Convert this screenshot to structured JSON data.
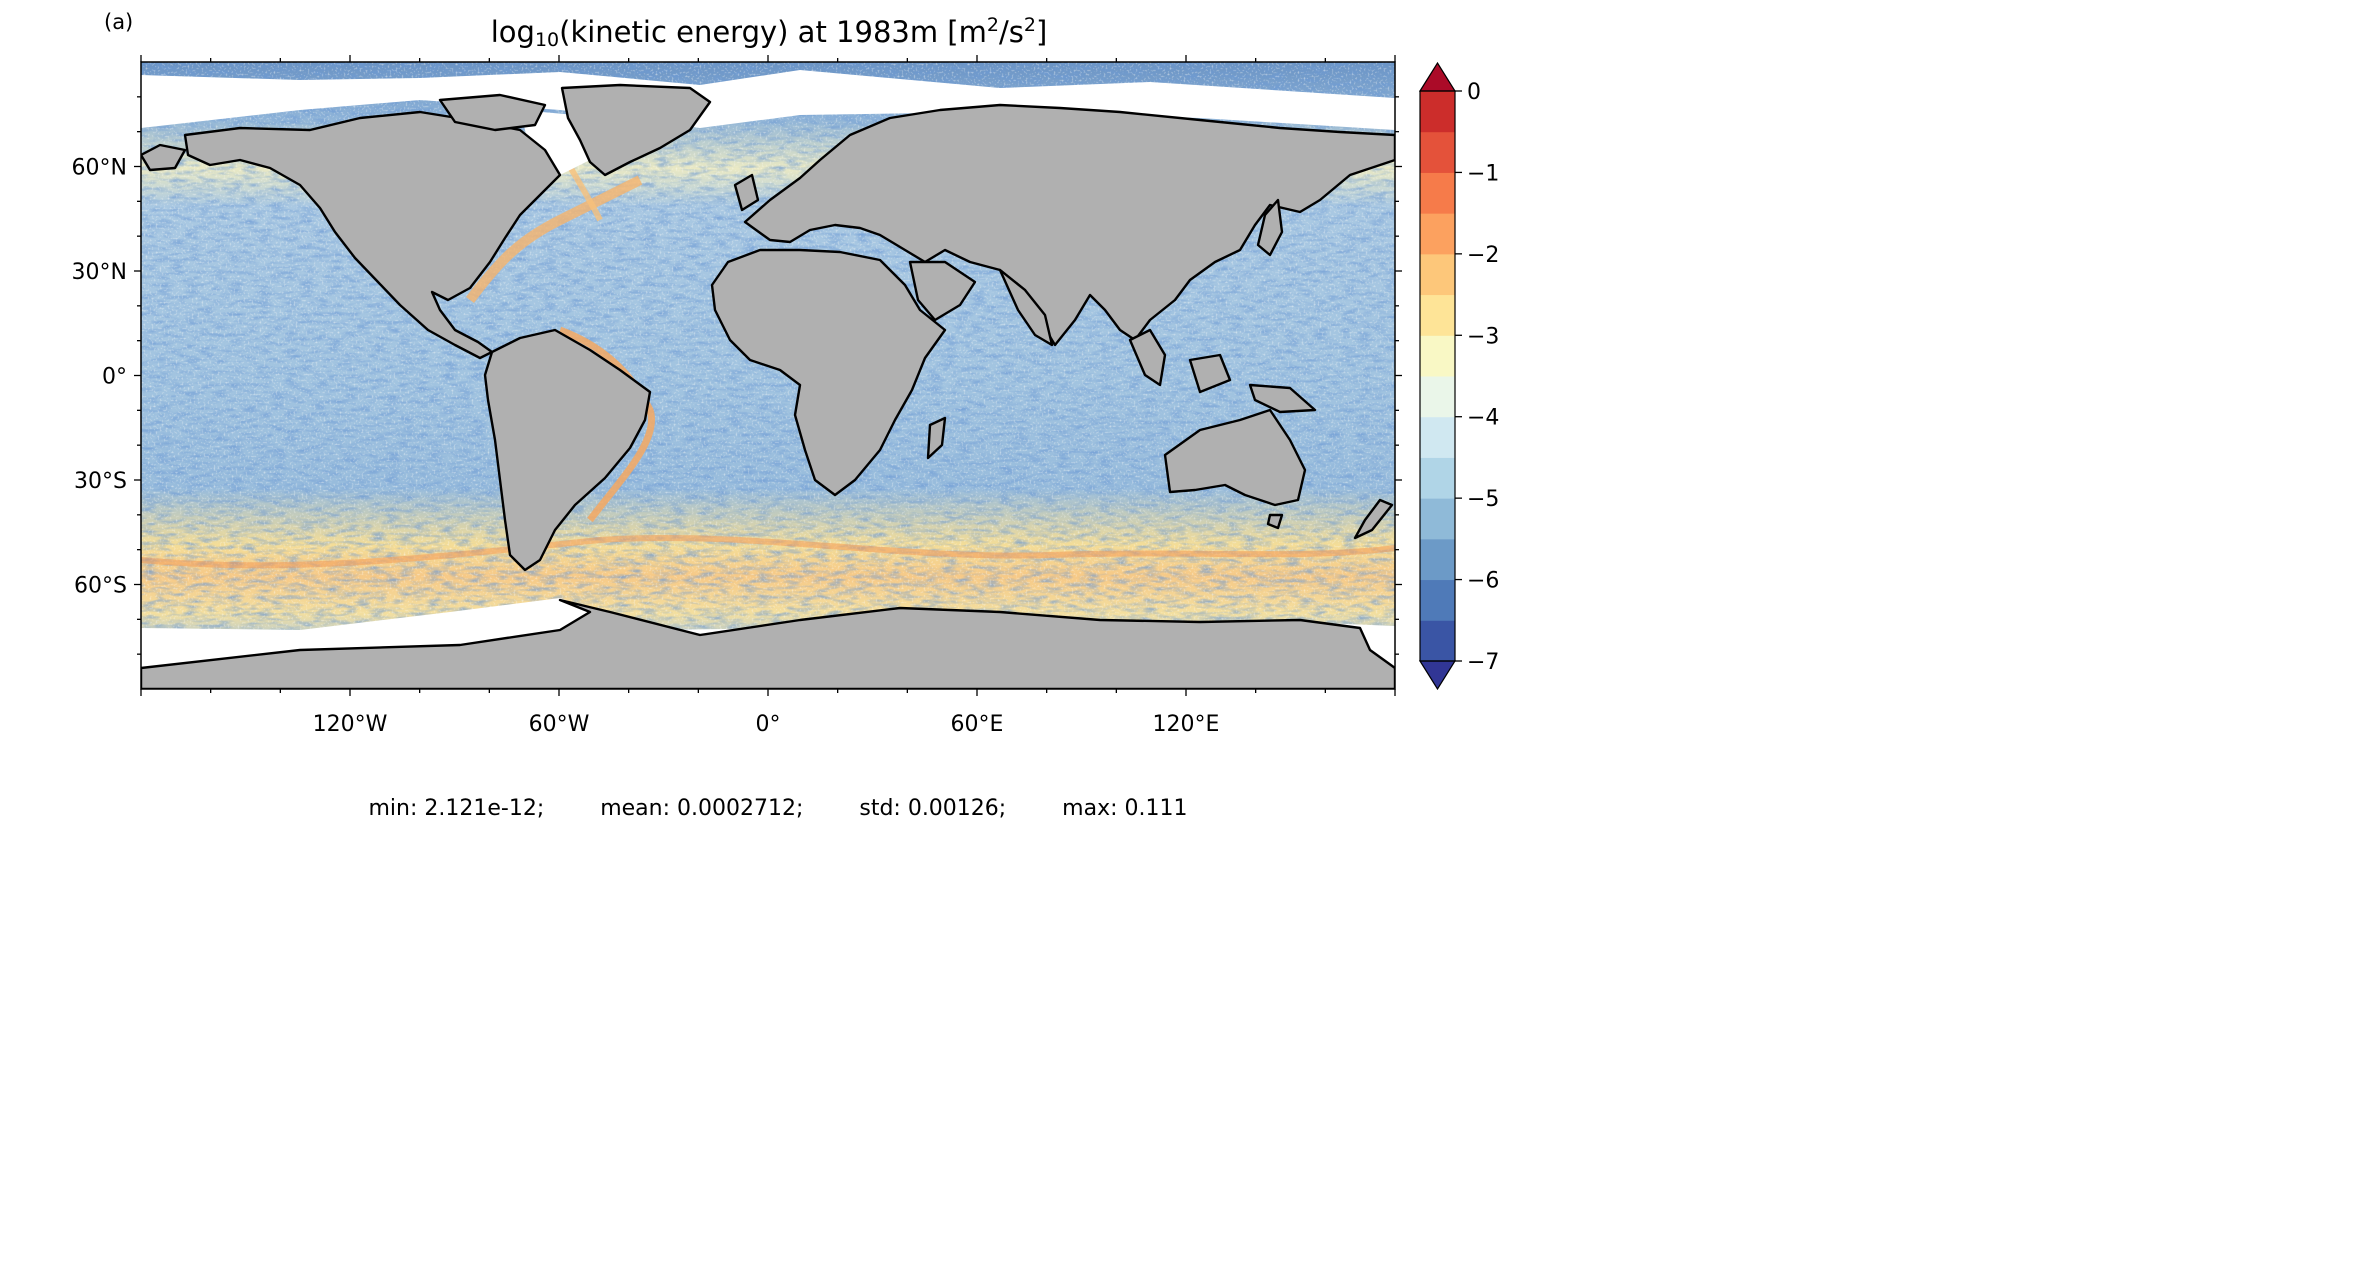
{
  "panel_label": "(a)",
  "title": {
    "pre": "log",
    "sub": "10",
    "mid": "(kinetic energy) at 1983m [m",
    "sup1": "2",
    "mid2": "/s",
    "sup2": "2",
    "post": "]"
  },
  "map": {
    "projection": "equirectangular",
    "lon_range": [
      -180,
      180
    ],
    "lat_range": [
      -90,
      90
    ],
    "land_color": "#b0b0b0",
    "coast_color": "#000000",
    "lat_ticks": [
      "60°N",
      "30°N",
      "0°",
      "30°S",
      "60°S"
    ],
    "lon_ticks": [
      "120°W",
      "60°W",
      "0°",
      "60°E",
      "120°E"
    ]
  },
  "colorbar": {
    "min": -7,
    "max": 0,
    "step": 0.5,
    "extend": "both",
    "tick_labels": [
      "0",
      "−1",
      "−2",
      "−3",
      "−4",
      "−5",
      "−6",
      "−7"
    ],
    "colors": [
      "#313695",
      "#3a55a5",
      "#4f7ab8",
      "#6c9ac7",
      "#8fbad8",
      "#b0d5e7",
      "#d0e8f1",
      "#eaf6e9",
      "#f9f8c5",
      "#fee497",
      "#fdc77a",
      "#fca15f",
      "#f67b4a",
      "#e4523a",
      "#cc2d2b",
      "#ab0b28"
    ]
  },
  "stats": {
    "min": "min: 2.121e-12;",
    "mean": "mean: 0.0002712;",
    "std": "std: 0.00126;",
    "max": "max: 0.111"
  }
}
